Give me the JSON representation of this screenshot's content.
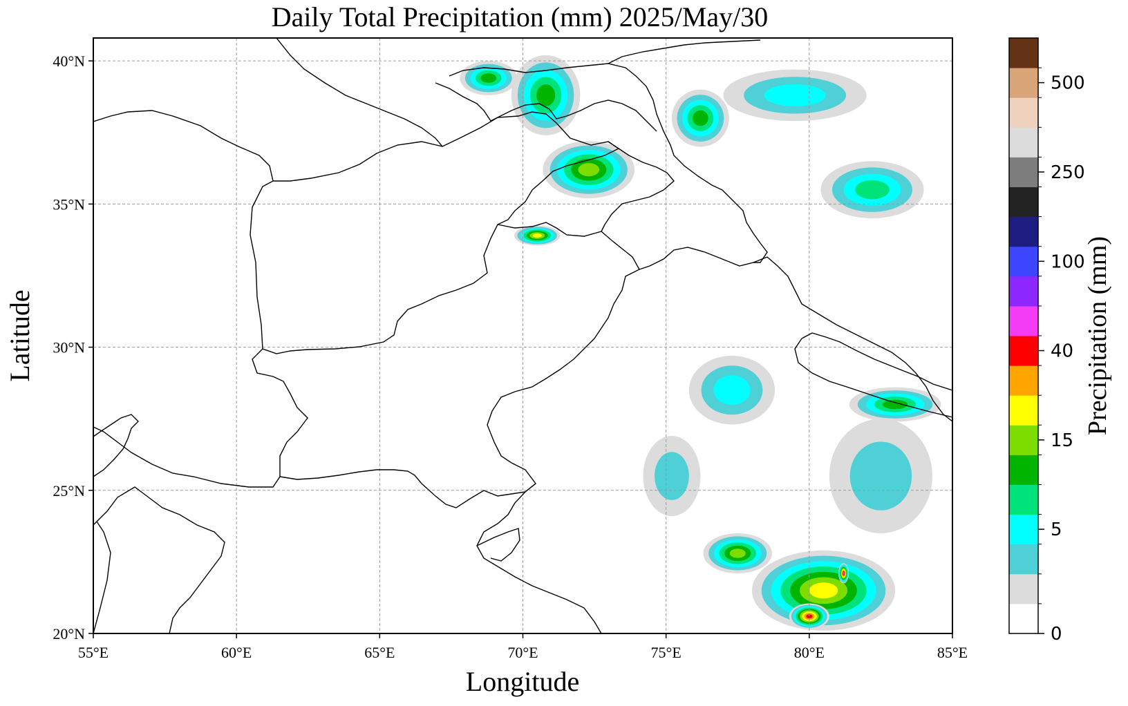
{
  "title": "Daily Total Precipitation (mm)  2025/May/30",
  "xlabel": "Longitude",
  "ylabel": "Latitude",
  "colorbar_label": "Precipitation (mm)",
  "lon_ticks": [
    "55°E",
    "60°E",
    "65°E",
    "70°E",
    "75°E",
    "80°E",
    "85°E"
  ],
  "lat_ticks": [
    "20°N",
    "25°N",
    "30°N",
    "35°N",
    "40°N"
  ],
  "extent": {
    "lon": [
      55,
      85
    ],
    "lat": [
      20,
      40.8
    ]
  },
  "gridlines": true,
  "colorbar": {
    "colors": [
      "#ffffff",
      "#dcdcdc",
      "#4fcfd6",
      "#00ffff",
      "#00e27a",
      "#00b400",
      "#7ddc00",
      "#ffff00",
      "#ffa500",
      "#ff0000",
      "#f43cf4",
      "#8c28ff",
      "#3c46ff",
      "#1e1e82",
      "#232323",
      "#7d7d7d",
      "#dcdcdc",
      "#efd2bd",
      "#d8a478",
      "#643214"
    ],
    "labels": [
      {
        "text": "0",
        "index": 0
      },
      {
        "text": "5",
        "index": 3
      },
      {
        "text": "15",
        "index": 6
      },
      {
        "text": "40",
        "index": 9
      },
      {
        "text": "100",
        "index": 12
      },
      {
        "text": "250",
        "index": 15
      },
      {
        "text": "500",
        "index": 18
      }
    ]
  },
  "rain_blobs": [
    {
      "lon": 72.3,
      "lat": 36.2,
      "level": 6,
      "rx": 1.6,
      "ry": 1.0
    },
    {
      "lon": 70.5,
      "lat": 33.9,
      "level": 7,
      "rx": 0.8,
      "ry": 0.35
    },
    {
      "lon": 70.8,
      "lat": 38.8,
      "level": 5,
      "rx": 1.2,
      "ry": 1.4
    },
    {
      "lon": 68.8,
      "lat": 39.4,
      "level": 5,
      "rx": 1.0,
      "ry": 0.6
    },
    {
      "lon": 76.2,
      "lat": 38.0,
      "level": 5,
      "rx": 1.0,
      "ry": 1.0
    },
    {
      "lon": 82.2,
      "lat": 35.5,
      "level": 4,
      "rx": 1.8,
      "ry": 1.0
    },
    {
      "lon": 83.0,
      "lat": 28.0,
      "level": 5,
      "rx": 1.6,
      "ry": 0.6
    },
    {
      "lon": 77.3,
      "lat": 28.5,
      "level": 3,
      "rx": 1.5,
      "ry": 1.2
    },
    {
      "lon": 75.2,
      "lat": 25.5,
      "level": 2,
      "rx": 1.0,
      "ry": 1.4
    },
    {
      "lon": 77.5,
      "lat": 22.8,
      "level": 6,
      "rx": 1.2,
      "ry": 0.7
    },
    {
      "lon": 80.5,
      "lat": 21.5,
      "level": 7,
      "rx": 2.5,
      "ry": 1.4
    },
    {
      "lon": 80.0,
      "lat": 20.6,
      "level": 9,
      "rx": 0.7,
      "ry": 0.45
    },
    {
      "lon": 81.2,
      "lat": 22.1,
      "level": 10,
      "rx": 0.18,
      "ry": 0.35
    },
    {
      "lon": 82.5,
      "lat": 25.5,
      "level": 2,
      "rx": 1.8,
      "ry": 2.0
    },
    {
      "lon": 79.5,
      "lat": 38.8,
      "level": 3,
      "rx": 2.5,
      "ry": 0.9
    }
  ]
}
